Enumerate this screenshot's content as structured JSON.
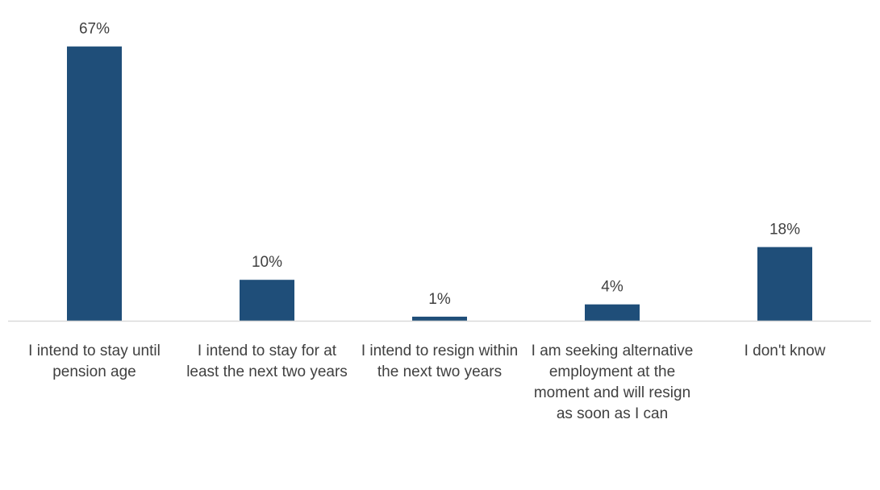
{
  "chart_data": {
    "type": "bar",
    "title": "",
    "xlabel": "",
    "ylabel": "",
    "categories": [
      "I intend to stay until pension age",
      "I intend to stay for at least the next two years",
      "I intend to resign within the next two years",
      "I am seeking alternative employment at the moment and will resign as soon as I can",
      "I don't know"
    ],
    "values": [
      67,
      10,
      1,
      4,
      18
    ],
    "value_labels": [
      "67%",
      "10%",
      "1%",
      "4%",
      "18%"
    ],
    "unit": "%",
    "ylim": [
      0,
      70
    ],
    "grid": false,
    "legend": "none",
    "bar_color": "#1f4e79",
    "axis_color": "#d9d9d9",
    "text_color": "#404040"
  }
}
